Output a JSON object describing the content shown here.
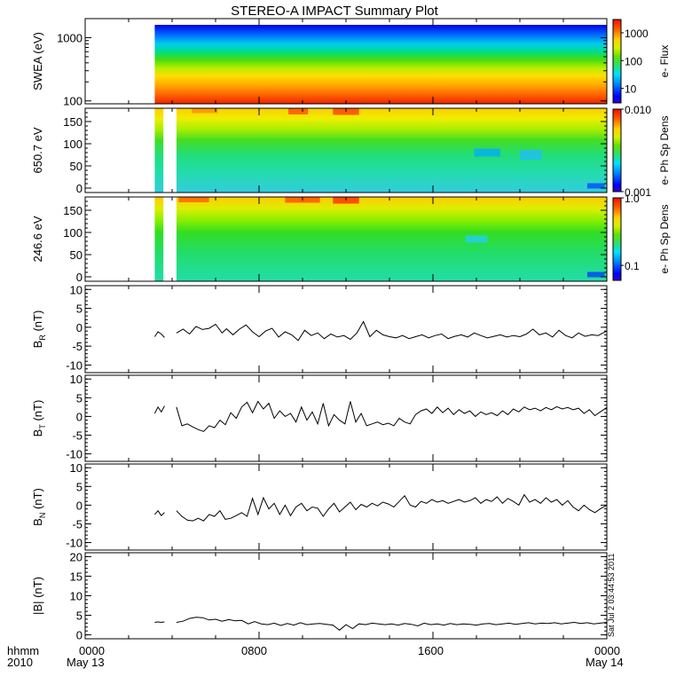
{
  "title": "STEREO-A IMPACT Summary Plot",
  "timestamp_note": "Sat Jul  2 03:44:53 2011",
  "x_axis": {
    "row1_labels": [
      "hhmm",
      "0000",
      "0800",
      "1600",
      "0000"
    ],
    "row2_labels": [
      "2010",
      "May 13",
      "May 14"
    ],
    "range_hours": [
      0,
      24
    ],
    "major_ticks_hours": [
      0,
      8,
      16,
      24
    ],
    "data_start_hour": 3.2,
    "gap_hours": [
      3.6,
      4.2
    ]
  },
  "chart_data": [
    {
      "type": "heatmap",
      "panel": "swea",
      "ylabel": "SWEA (eV)",
      "y_scale": "log",
      "ylim": [
        90,
        2000
      ],
      "y_ticks": [
        "1000",
        "100"
      ],
      "colorbar": {
        "label": "e- Flux",
        "scale": "log",
        "range": [
          3,
          3000
        ],
        "ticks": [
          "1000",
          "100",
          "10"
        ]
      }
    },
    {
      "type": "heatmap",
      "panel": "pad650",
      "ylabel": "650.7 eV",
      "ylim": [
        -10,
        180
      ],
      "y_ticks": [
        "150",
        "100",
        "50",
        "0"
      ],
      "colorbar": {
        "label": "e- Ph Sp Dens",
        "scale": "log",
        "range": [
          0.001,
          0.01
        ],
        "ticks": [
          "0.010",
          "0.001"
        ]
      }
    },
    {
      "type": "heatmap",
      "panel": "pad246",
      "ylabel": "246.6 eV",
      "ylim": [
        -10,
        180
      ],
      "y_ticks": [
        "150",
        "100",
        "50",
        "0"
      ],
      "colorbar": {
        "label": "e- Ph Sp Dens",
        "scale": "log",
        "range": [
          0.06,
          1.0
        ],
        "ticks": [
          "1.0",
          "0.1"
        ]
      }
    },
    {
      "type": "line",
      "panel": "br",
      "ylabel_main": "B",
      "ylabel_sub": "R",
      "ylabel_unit": " (nT)",
      "ylim": [
        -12,
        11
      ],
      "y_ticks": [
        "10",
        "5",
        "0",
        "-5",
        "-10"
      ],
      "series": [
        {
          "x": [
            3.2,
            3.35,
            3.5,
            3.65
          ],
          "y": [
            -2.5,
            -1.2,
            -1.8,
            -2.7
          ]
        },
        {
          "x": [
            4.2,
            4.5,
            4.8,
            5.1,
            5.4,
            5.7,
            6.0,
            6.3,
            6.5,
            6.8,
            7.1,
            7.4,
            7.7,
            8.0,
            8.3,
            8.6,
            8.9,
            9.2,
            9.5,
            9.8,
            10.1,
            10.4,
            10.7,
            11.0,
            11.3,
            11.6,
            11.9,
            12.2,
            12.5,
            12.8,
            13.1,
            13.4,
            13.7,
            14.0,
            14.3,
            14.6,
            14.9,
            15.2,
            15.5,
            15.8,
            16.1,
            16.4,
            16.7,
            17.0,
            17.3,
            17.6,
            17.9,
            18.2,
            18.5,
            18.8,
            19.1,
            19.4,
            19.7,
            20.0,
            20.3,
            20.6,
            20.9,
            21.2,
            21.5,
            21.8,
            22.1,
            22.4,
            22.7,
            23.0,
            23.3,
            23.6,
            24.0
          ],
          "y": [
            -1.5,
            -0.5,
            -1.8,
            0.2,
            -0.6,
            -0.3,
            0.8,
            -1.5,
            -0.4,
            -2.0,
            -0.5,
            0.6,
            -1.2,
            -2.5,
            -1.0,
            -0.3,
            -2.6,
            -1.2,
            -2.0,
            -3.5,
            -0.8,
            -2.2,
            -1.5,
            -3.0,
            -1.8,
            -2.6,
            -2.2,
            -3.2,
            -1.5,
            1.5,
            -2.5,
            -0.8,
            -2.0,
            -2.5,
            -2.8,
            -2.2,
            -3.0,
            -2.5,
            -2.0,
            -2.8,
            -2.2,
            -1.8,
            -3.0,
            -2.4,
            -2.0,
            -2.6,
            -1.5,
            -2.2,
            -2.8,
            -2.4,
            -2.0,
            -2.6,
            -2.2,
            -2.5,
            -1.8,
            -0.5,
            -2.0,
            -1.5,
            -2.6,
            -0.8,
            -2.2,
            -2.8,
            -1.5,
            -2.4,
            -2.0,
            -2.2,
            -1.0
          ]
        }
      ]
    },
    {
      "type": "line",
      "panel": "bt",
      "ylabel_main": "B",
      "ylabel_sub": "T",
      "ylabel_unit": " (nT)",
      "ylim": [
        -12,
        11
      ],
      "y_ticks": [
        "10",
        "5",
        "0",
        "-5",
        "-10"
      ],
      "series": [
        {
          "x": [
            3.2,
            3.35,
            3.5,
            3.65
          ],
          "y": [
            0.8,
            2.5,
            1.2,
            2.8
          ]
        },
        {
          "x": [
            4.2,
            4.45,
            4.7,
            4.95,
            5.2,
            5.45,
            5.7,
            5.95,
            6.2,
            6.45,
            6.7,
            6.95,
            7.2,
            7.45,
            7.7,
            7.95,
            8.2,
            8.45,
            8.7,
            8.95,
            9.2,
            9.45,
            9.7,
            9.95,
            10.2,
            10.45,
            10.7,
            10.95,
            11.2,
            11.45,
            11.7,
            11.95,
            12.2,
            12.45,
            12.7,
            12.95,
            13.2,
            13.45,
            13.7,
            13.95,
            14.2,
            14.45,
            14.7,
            14.95,
            15.2,
            15.45,
            15.7,
            15.95,
            16.2,
            16.45,
            16.7,
            16.95,
            17.2,
            17.45,
            17.7,
            17.95,
            18.2,
            18.45,
            18.7,
            18.95,
            19.2,
            19.45,
            19.7,
            19.95,
            20.2,
            20.45,
            20.7,
            20.95,
            21.2,
            21.45,
            21.7,
            21.95,
            22.2,
            22.45,
            22.7,
            22.95,
            23.2,
            23.45,
            23.7,
            24.0
          ],
          "y": [
            2.5,
            -2.5,
            -2.0,
            -2.8,
            -3.5,
            -4.0,
            -2.5,
            -3.0,
            -1.0,
            -2.2,
            1.0,
            -0.5,
            2.5,
            3.8,
            1.0,
            4.0,
            2.0,
            3.5,
            -0.5,
            1.5,
            0.0,
            0.8,
            -1.5,
            2.5,
            -1.0,
            1.2,
            -2.0,
            3.5,
            -2.5,
            0.5,
            -1.0,
            -2.0,
            4.0,
            -1.5,
            0.8,
            -2.5,
            -2.0,
            -1.5,
            -2.2,
            -1.8,
            -2.5,
            -0.5,
            -1.5,
            -2.0,
            0.5,
            1.5,
            2.0,
            0.8,
            2.5,
            1.0,
            2.2,
            0.5,
            1.8,
            0.8,
            1.5,
            0.0,
            1.2,
            0.5,
            1.0,
            0.2,
            1.5,
            0.5,
            2.0,
            1.2,
            2.5,
            1.8,
            2.2,
            1.5,
            2.4,
            1.8,
            2.6,
            2.0,
            2.4,
            1.8,
            2.2,
            0.8,
            1.8,
            0.2,
            1.2,
            2.4
          ]
        }
      ]
    },
    {
      "type": "line",
      "panel": "bn",
      "ylabel_main": "B",
      "ylabel_sub": "N",
      "ylabel_unit": " (nT)",
      "ylim": [
        -12,
        11
      ],
      "y_ticks": [
        "10",
        "5",
        "0",
        "-5",
        "-10"
      ],
      "series": [
        {
          "x": [
            3.2,
            3.35,
            3.5,
            3.65
          ],
          "y": [
            -2.5,
            -1.5,
            -2.8,
            -2.0
          ]
        },
        {
          "x": [
            4.2,
            4.45,
            4.7,
            4.95,
            5.2,
            5.45,
            5.7,
            5.95,
            6.2,
            6.45,
            6.7,
            6.95,
            7.2,
            7.45,
            7.7,
            7.95,
            8.2,
            8.45,
            8.7,
            8.95,
            9.2,
            9.45,
            9.7,
            9.95,
            10.2,
            10.45,
            10.7,
            10.95,
            11.2,
            11.45,
            11.7,
            11.95,
            12.2,
            12.45,
            12.7,
            12.95,
            13.2,
            13.45,
            13.7,
            13.95,
            14.2,
            14.45,
            14.7,
            14.95,
            15.2,
            15.45,
            15.7,
            15.95,
            16.2,
            16.45,
            16.7,
            16.95,
            17.2,
            17.45,
            17.7,
            17.95,
            18.2,
            18.45,
            18.7,
            18.95,
            19.2,
            19.45,
            19.7,
            19.95,
            20.2,
            20.45,
            20.7,
            20.95,
            21.2,
            21.45,
            21.7,
            21.95,
            22.2,
            22.45,
            22.7,
            22.95,
            23.2,
            23.45,
            23.7,
            24.0
          ],
          "y": [
            -1.5,
            -3.0,
            -4.0,
            -4.2,
            -3.5,
            -4.2,
            -2.5,
            -3.0,
            -1.5,
            -3.8,
            -3.5,
            -2.8,
            -2.0,
            -3.0,
            1.8,
            -2.5,
            2.0,
            -1.0,
            0.5,
            -2.5,
            0.0,
            -2.8,
            -0.5,
            0.5,
            -1.5,
            -0.5,
            -0.8,
            -3.0,
            -1.0,
            0.5,
            -1.8,
            -0.5,
            0.8,
            -1.2,
            0.2,
            -0.5,
            0.5,
            -0.2,
            0.8,
            0.3,
            -0.5,
            1.0,
            2.5,
            0.0,
            -0.5,
            1.0,
            0.5,
            1.5,
            0.8,
            1.2,
            0.5,
            1.0,
            1.5,
            0.8,
            1.2,
            2.0,
            0.5,
            1.5,
            1.0,
            2.2,
            0.5,
            1.8,
            1.0,
            0.0,
            2.8,
            0.8,
            1.5,
            0.5,
            2.0,
            0.8,
            1.5,
            0.0,
            1.2,
            -0.5,
            -1.5,
            0.0,
            -1.2,
            -2.0,
            -1.0,
            0.0
          ]
        }
      ]
    },
    {
      "type": "line",
      "panel": "bmag",
      "ylabel_main": "|B| (nT)",
      "ylim": [
        -1,
        21
      ],
      "y_ticks": [
        "20",
        "15",
        "10",
        "5",
        "0"
      ],
      "series": [
        {
          "x": [
            3.2,
            3.35,
            3.5,
            3.65
          ],
          "y": [
            3.2,
            3.3,
            3.2,
            3.3
          ]
        },
        {
          "x": [
            4.2,
            4.5,
            4.8,
            5.1,
            5.4,
            5.7,
            6.0,
            6.3,
            6.6,
            6.9,
            7.2,
            7.5,
            7.8,
            8.1,
            8.4,
            8.7,
            9.0,
            9.3,
            9.6,
            9.9,
            10.2,
            10.5,
            10.8,
            11.1,
            11.4,
            11.7,
            12.0,
            12.3,
            12.6,
            12.9,
            13.2,
            13.5,
            13.8,
            14.1,
            14.4,
            14.7,
            15.0,
            15.3,
            15.6,
            15.9,
            16.2,
            16.5,
            16.8,
            17.1,
            17.4,
            17.7,
            18.0,
            18.3,
            18.6,
            18.9,
            19.2,
            19.5,
            19.8,
            20.1,
            20.4,
            20.7,
            21.0,
            21.3,
            21.6,
            21.9,
            22.2,
            22.5,
            22.8,
            23.1,
            23.4,
            23.7,
            24.0
          ],
          "y": [
            3.2,
            3.5,
            4.2,
            4.5,
            4.4,
            3.8,
            4.0,
            3.5,
            3.9,
            3.6,
            3.7,
            2.8,
            3.4,
            2.8,
            2.6,
            3.0,
            2.4,
            2.9,
            2.5,
            3.1,
            2.6,
            2.8,
            2.9,
            2.7,
            2.5,
            1.2,
            2.6,
            1.6,
            2.8,
            2.6,
            3.0,
            2.8,
            2.6,
            2.8,
            2.5,
            2.9,
            2.7,
            2.3,
            3.0,
            2.6,
            2.8,
            2.5,
            2.9,
            2.6,
            2.8,
            2.7,
            2.5,
            2.8,
            2.9,
            2.6,
            2.8,
            3.0,
            2.7,
            2.9,
            3.1,
            2.8,
            3.0,
            2.9,
            3.1,
            2.8,
            3.0,
            3.2,
            2.9,
            3.1,
            2.8,
            3.0,
            3.2
          ]
        }
      ]
    }
  ]
}
